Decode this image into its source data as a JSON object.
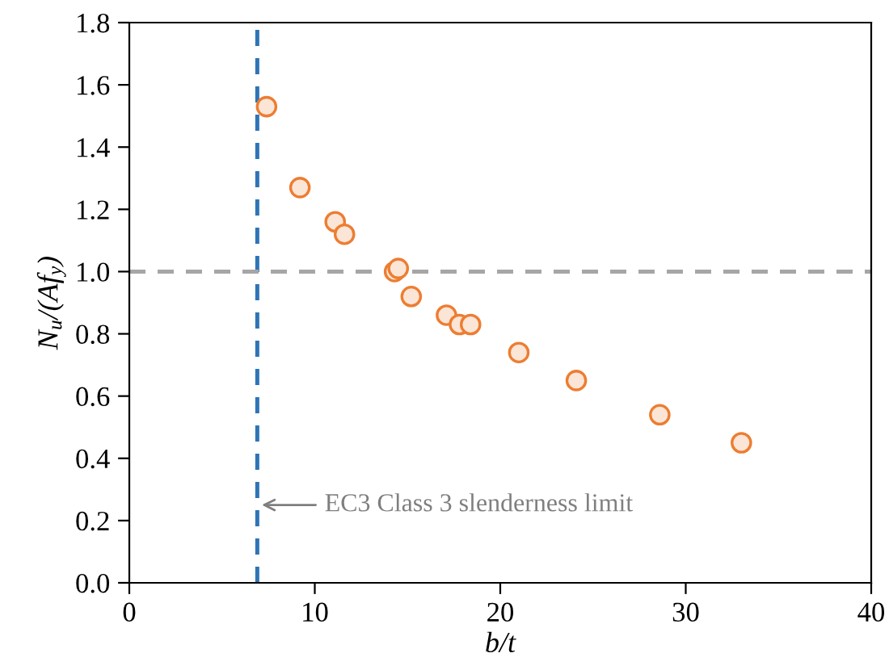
{
  "chart_data": {
    "type": "scatter",
    "xlabel": "b/t",
    "ylabel": "N$_{u}$/(Af$_{y}$)",
    "x": [
      7.4,
      9.2,
      11.1,
      11.6,
      14.3,
      14.5,
      15.2,
      17.1,
      17.8,
      18.4,
      21.0,
      24.1,
      28.6,
      33.0
    ],
    "series": [
      {
        "color": "#ed7d31",
        "values": [
          1.53,
          1.27,
          1.16,
          1.12,
          1.0,
          1.01,
          0.92,
          0.86,
          0.83,
          0.83,
          0.74,
          0.65,
          0.54,
          0.45
        ]
      }
    ],
    "marker": "circle",
    "xlim": [
      0,
      40
    ],
    "xticks": [
      0,
      10,
      20,
      30,
      40
    ],
    "ylim": [
      0,
      1.8
    ],
    "yticks": [
      {
        "value": 0,
        "label": "0.0"
      },
      {
        "value": 0.2,
        "label": "0.2"
      },
      {
        "value": 0.4,
        "label": "0.4"
      },
      {
        "value": 0.6,
        "label": "0.6"
      },
      {
        "value": 0.8,
        "label": "0.8"
      },
      {
        "value": 1.0,
        "label": "1.0"
      },
      {
        "value": 1.2,
        "label": "1.2"
      },
      {
        "value": 1.4,
        "label": "1.4"
      },
      {
        "value": 1.6,
        "label": "1.6"
      },
      {
        "value": 1.8,
        "label": "1.8"
      }
    ],
    "ref_lines": [
      {
        "axis": "x",
        "value": 6.9,
        "color": "#2e75b6",
        "line_style": "dashed"
      },
      {
        "axis": "y",
        "value": 1.0,
        "color": "#a6a6a6",
        "line_style": "dashed"
      }
    ],
    "annotations": [
      {
        "text": "EC3 Class 3 slenderness limit",
        "x": 6.9,
        "y": 0.25
      }
    ],
    "grid": false,
    "legend": false
  }
}
